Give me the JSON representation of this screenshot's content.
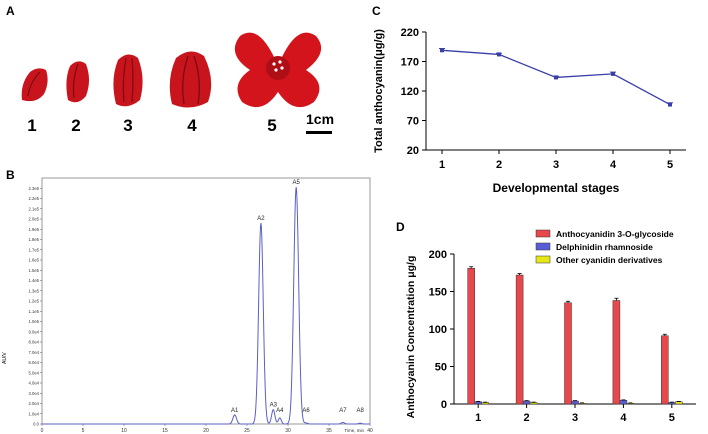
{
  "panels": {
    "a": {
      "letter": "A",
      "stage_labels": [
        "1",
        "2",
        "3",
        "4",
        "5"
      ],
      "scale_label": "1cm",
      "colors": {
        "petal": "#c8141c",
        "petal_dark": "#7d0a10"
      }
    },
    "b": {
      "letter": "B",
      "ylabel": "AU/V"
    },
    "c": {
      "letter": "C"
    },
    "d": {
      "letter": "D"
    }
  },
  "chart_data": [
    {
      "id": "B",
      "type": "line",
      "title": "",
      "xlabel": "Time, min",
      "ylabel": "AU/V",
      "xlim": [
        0,
        40
      ],
      "xticks": [
        0,
        5,
        10,
        15,
        20,
        25,
        30,
        35,
        40
      ],
      "ylim": [
        0,
        240000
      ],
      "yticks": [
        0,
        10000,
        20000,
        30000,
        40000,
        50000,
        60000,
        70000,
        80000,
        90000,
        100000,
        110000,
        120000,
        130000,
        140000,
        150000,
        160000,
        170000,
        180000,
        190000,
        200000,
        210000,
        220000,
        230000
      ],
      "ytick_labels": [
        "0.0",
        "1.0e4",
        "2.0e4",
        "3.0e4",
        "4.0e4",
        "5.0e4",
        "6.0e4",
        "7.0e4",
        "8.0e4",
        "9.0e4",
        "1.0e5",
        "1.1e5",
        "1.2e5",
        "1.3e5",
        "1.4e5",
        "1.5e5",
        "1.6e5",
        "1.7e5",
        "1.8e5",
        "1.9e5",
        "2.0e5",
        "2.1e5",
        "2.2e5",
        "2.3e5"
      ],
      "peaks": [
        {
          "name": "A1",
          "x": 23.5,
          "y": 9000
        },
        {
          "name": "A2",
          "x": 26.7,
          "y": 196000
        },
        {
          "name": "A3",
          "x": 28.2,
          "y": 14000
        },
        {
          "name": "A4",
          "x": 29.0,
          "y": 6000
        },
        {
          "name": "A5",
          "x": 31.0,
          "y": 231000
        },
        {
          "name": "A6",
          "x": 32.2,
          "y": 1000
        },
        {
          "name": "A7",
          "x": 36.7,
          "y": 1500
        },
        {
          "name": "A8",
          "x": 38.8,
          "y": 800
        }
      ],
      "color": "#5a5fc8"
    },
    {
      "id": "C",
      "type": "line",
      "title": "",
      "xlabel": "Developmental stages",
      "ylabel": "Total anthocyanin(μg/g)",
      "categories": [
        "1",
        "2",
        "3",
        "4",
        "5"
      ],
      "values": [
        189,
        182,
        143,
        149,
        97
      ],
      "errors": [
        3,
        2,
        2,
        3,
        3
      ],
      "ylim": [
        20,
        220
      ],
      "yticks": [
        20,
        70,
        120,
        170,
        220
      ],
      "color": "#3a3fa8"
    },
    {
      "id": "D",
      "type": "bar",
      "title": "",
      "xlabel": "",
      "ylabel": "Anthocyanin Concentration μg/g",
      "categories": [
        "1",
        "2",
        "3",
        "4",
        "5"
      ],
      "ylim": [
        0,
        200
      ],
      "yticks": [
        0,
        50,
        100,
        150,
        200
      ],
      "legend_position": "top-right",
      "series": [
        {
          "name": "Anthocyanidin 3-O-glycoside",
          "values": [
            181,
            172,
            135,
            138,
            91
          ],
          "errors": [
            2,
            2,
            2,
            3,
            2
          ],
          "color": "#e8474c"
        },
        {
          "name": "Delphinidin rhamnoside",
          "values": [
            3,
            4,
            4,
            5,
            2
          ],
          "errors": [
            0.5,
            0.5,
            0.5,
            0.5,
            0.5
          ],
          "color": "#5a5ed6"
        },
        {
          "name": "Other cyanidin derivatives",
          "values": [
            2,
            2,
            1,
            1,
            3
          ],
          "errors": [
            0.5,
            0.5,
            0.5,
            0.5,
            0.5
          ],
          "color": "#e6e619"
        }
      ]
    }
  ]
}
